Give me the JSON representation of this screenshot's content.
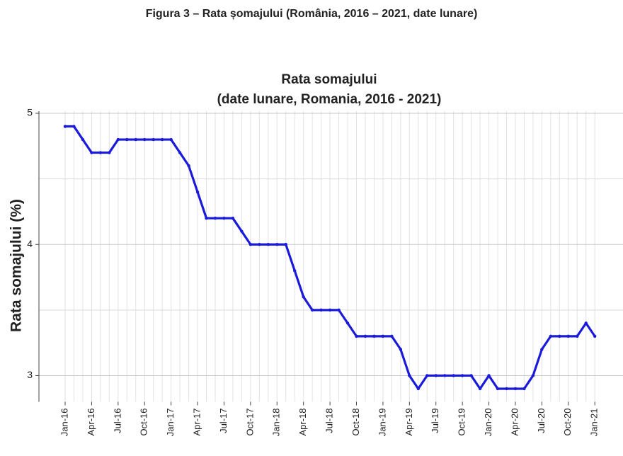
{
  "caption": "Figura 3 – Rata șomajului (România, 2016 – 2021, date lunare)",
  "chart_data": {
    "type": "line",
    "title": [
      "Rata somajului",
      "(date lunare, Romania, 2016 - 2021)"
    ],
    "y_label": "Rata somajului (%)",
    "categories": [
      "Jan-16",
      null,
      null,
      "Apr-16",
      null,
      null,
      "Jul-16",
      null,
      null,
      "Oct-16",
      null,
      null,
      "Jan-17",
      null,
      null,
      "Apr-17",
      null,
      null,
      "Jul-17",
      null,
      null,
      "Oct-17",
      null,
      null,
      "Jan-18",
      null,
      null,
      "Apr-18",
      null,
      null,
      "Jul-18",
      null,
      null,
      "Oct-18",
      null,
      null,
      "Jan-19",
      null,
      null,
      "Apr-19",
      null,
      null,
      "Jul-19",
      null,
      null,
      "Oct-19",
      null,
      null,
      "Jan-20",
      null,
      null,
      "Apr-20",
      null,
      null,
      "Jul-20",
      null,
      null,
      "Oct-20",
      null,
      null,
      "Jan-21"
    ],
    "series": [
      {
        "name": "Rata somajului",
        "color": "#1a1adb",
        "values": [
          4.9,
          4.9,
          4.8,
          4.7,
          4.7,
          4.7,
          4.8,
          4.8,
          4.8,
          4.8,
          4.8,
          4.8,
          4.8,
          4.7,
          4.6,
          4.4,
          4.2,
          4.2,
          4.2,
          4.2,
          4.1,
          4.0,
          4.0,
          4.0,
          4.0,
          4.0,
          3.8,
          3.6,
          3.5,
          3.5,
          3.5,
          3.5,
          3.4,
          3.3,
          3.3,
          3.3,
          3.3,
          3.3,
          3.2,
          3.0,
          2.9,
          3.0,
          3.0,
          3.0,
          3.0,
          3.0,
          3.0,
          2.9,
          3.0,
          2.9,
          2.9,
          2.9,
          2.9,
          3.0,
          3.2,
          3.3,
          3.3,
          3.3,
          3.3,
          3.4,
          3.3
        ]
      }
    ],
    "ylim": [
      2.8,
      5.0
    ],
    "yticks": [
      3,
      4,
      5
    ],
    "y_minor_ticks": [
      3.5,
      4.5
    ],
    "grid": true
  }
}
